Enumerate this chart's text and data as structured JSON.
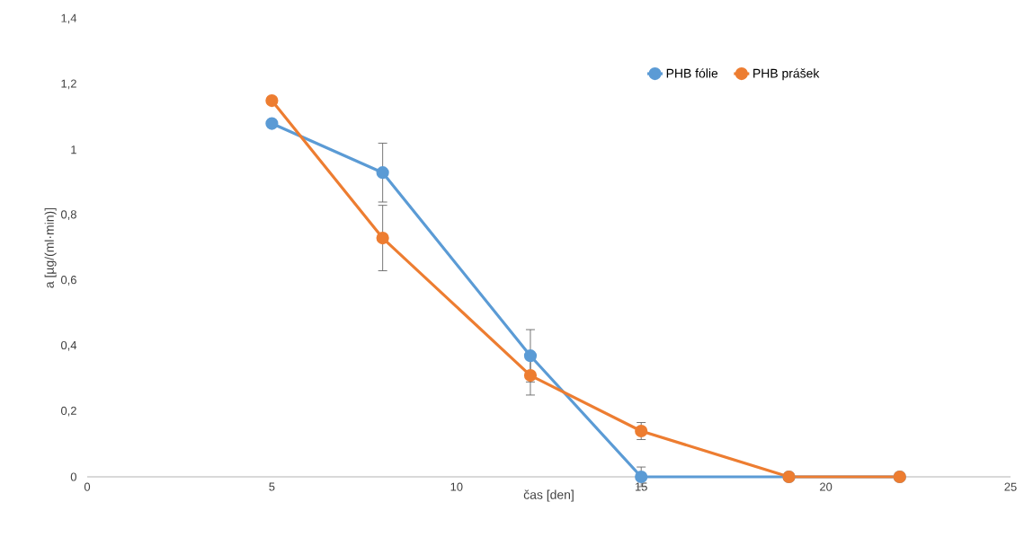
{
  "chart_data": {
    "type": "line",
    "xlabel": "čas [den]",
    "ylabel": "a [µg/(ml·min)]",
    "x": [
      5,
      8,
      12,
      15,
      19,
      22
    ],
    "xlim": [
      0,
      25
    ],
    "xticks": [
      0,
      5,
      10,
      15,
      20,
      25
    ],
    "ylim": [
      0,
      1.4
    ],
    "yticks": [
      {
        "value": 0,
        "label": "0"
      },
      {
        "value": 0.2,
        "label": "0,2"
      },
      {
        "value": 0.4,
        "label": "0,4"
      },
      {
        "value": 0.6,
        "label": "0,6"
      },
      {
        "value": 0.8,
        "label": "0,8"
      },
      {
        "value": 1,
        "label": "1"
      },
      {
        "value": 1.2,
        "label": "1,2"
      },
      {
        "value": 1.4,
        "label": "1,4"
      }
    ],
    "legend": "top right",
    "marker": "circle",
    "line_style": "solid",
    "series": [
      {
        "name": "PHB fólie",
        "color": "#5b9bd5",
        "values": [
          1.08,
          0.93,
          0.37,
          0,
          0,
          0
        ],
        "errors": [
          null,
          0.09,
          0.08,
          0.03,
          null,
          null
        ]
      },
      {
        "name": "PHB prášek",
        "color": "#ed7d31",
        "values": [
          1.15,
          0.73,
          0.31,
          0.14,
          0,
          0
        ],
        "errors": [
          null,
          0.1,
          0.06,
          0.026,
          null,
          null
        ]
      }
    ]
  }
}
